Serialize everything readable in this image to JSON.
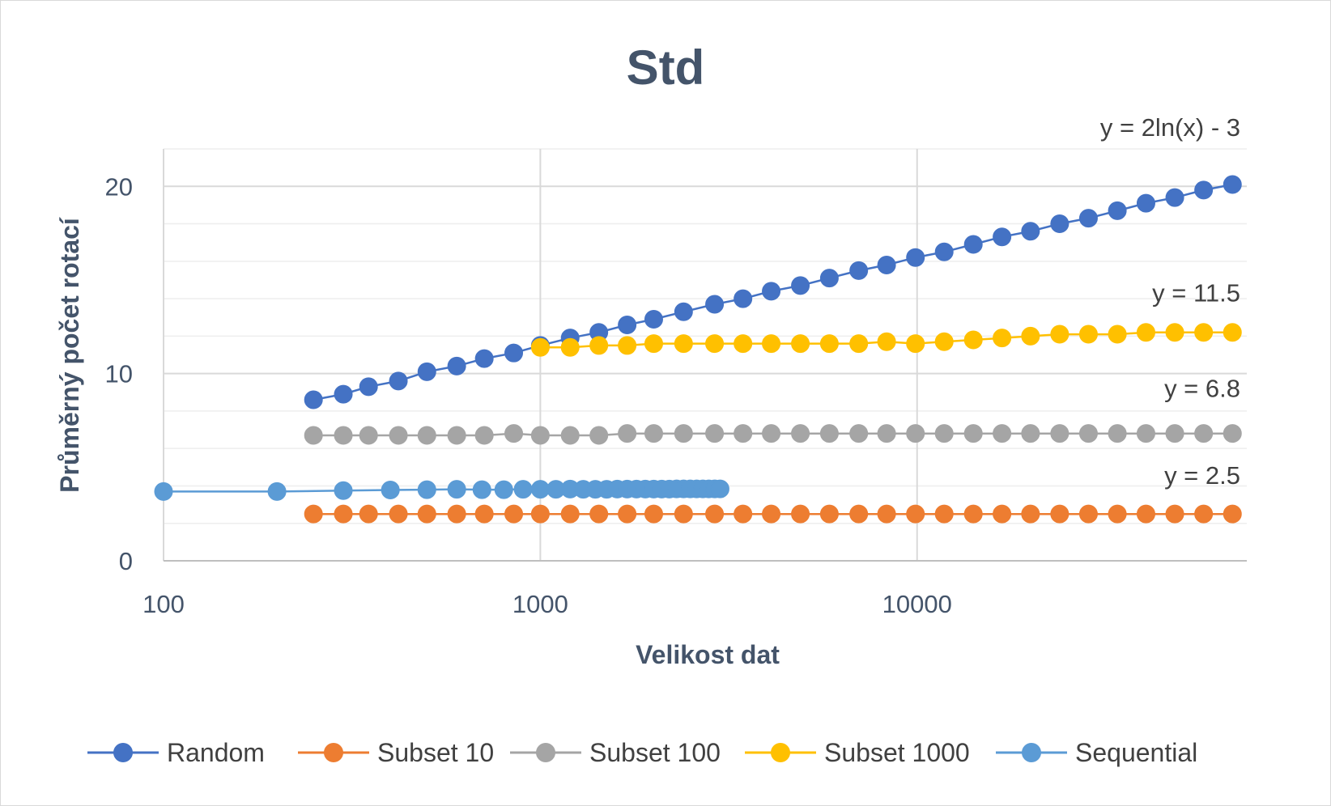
{
  "chart_data": {
    "type": "scatter",
    "title": "Std",
    "xlabel": "Velikost dat",
    "ylabel": "Průměrný počet rotací",
    "x_scale": "log",
    "xlim": [
      100,
      75000
    ],
    "ylim": [
      0,
      22
    ],
    "x_ticks": [
      "100",
      "1000",
      "10000"
    ],
    "y_ticks": [
      "0",
      "10",
      "20"
    ],
    "grid": true,
    "legend_position": "bottom",
    "series": [
      {
        "name": "Random",
        "color": "#4472c4",
        "x": [
          250,
          300,
          350,
          420,
          500,
          600,
          710,
          850,
          1000,
          1200,
          1430,
          1700,
          2000,
          2400,
          2900,
          3450,
          4100,
          4900,
          5850,
          7000,
          8300,
          9900,
          11800,
          14100,
          16800,
          20000,
          23900,
          28500,
          34000,
          40500,
          48300,
          57600,
          68700
        ],
        "y": [
          8.6,
          8.9,
          9.3,
          9.6,
          10.1,
          10.4,
          10.8,
          11.1,
          11.5,
          11.9,
          12.2,
          12.6,
          12.9,
          13.3,
          13.7,
          14.0,
          14.4,
          14.7,
          15.1,
          15.5,
          15.8,
          16.2,
          16.5,
          16.9,
          17.3,
          17.6,
          18.0,
          18.3,
          18.7,
          19.1,
          19.4,
          19.8,
          20.1
        ]
      },
      {
        "name": "Subset 10",
        "color": "#ed7d31",
        "x": [
          250,
          300,
          350,
          420,
          500,
          600,
          710,
          850,
          1000,
          1200,
          1430,
          1700,
          2000,
          2400,
          2900,
          3450,
          4100,
          4900,
          5850,
          7000,
          8300,
          9900,
          11800,
          14100,
          16800,
          20000,
          23900,
          28500,
          34000,
          40500,
          48300,
          57600,
          68700
        ],
        "y": [
          2.5,
          2.5,
          2.5,
          2.5,
          2.5,
          2.5,
          2.5,
          2.5,
          2.5,
          2.5,
          2.5,
          2.5,
          2.5,
          2.5,
          2.5,
          2.5,
          2.5,
          2.5,
          2.5,
          2.5,
          2.5,
          2.5,
          2.5,
          2.5,
          2.5,
          2.5,
          2.5,
          2.5,
          2.5,
          2.5,
          2.5,
          2.5,
          2.5
        ]
      },
      {
        "name": "Subset 100",
        "color": "#a5a5a5",
        "x": [
          250,
          300,
          350,
          420,
          500,
          600,
          710,
          850,
          1000,
          1200,
          1430,
          1700,
          2000,
          2400,
          2900,
          3450,
          4100,
          4900,
          5850,
          7000,
          8300,
          9900,
          11800,
          14100,
          16800,
          20000,
          23900,
          28500,
          34000,
          40500,
          48300,
          57600,
          68700
        ],
        "y": [
          6.7,
          6.7,
          6.7,
          6.7,
          6.7,
          6.7,
          6.7,
          6.8,
          6.7,
          6.7,
          6.7,
          6.8,
          6.8,
          6.8,
          6.8,
          6.8,
          6.8,
          6.8,
          6.8,
          6.8,
          6.8,
          6.8,
          6.8,
          6.8,
          6.8,
          6.8,
          6.8,
          6.8,
          6.8,
          6.8,
          6.8,
          6.8,
          6.8
        ]
      },
      {
        "name": "Subset 1000",
        "color": "#ffc000",
        "x": [
          1000,
          1200,
          1430,
          1700,
          2000,
          2400,
          2900,
          3450,
          4100,
          4900,
          5850,
          7000,
          8300,
          9900,
          11800,
          14100,
          16800,
          20000,
          23900,
          28500,
          34000,
          40500,
          48300,
          57600,
          68700
        ],
        "y": [
          11.4,
          11.4,
          11.5,
          11.5,
          11.6,
          11.6,
          11.6,
          11.6,
          11.6,
          11.6,
          11.6,
          11.6,
          11.7,
          11.6,
          11.7,
          11.8,
          11.9,
          12.0,
          12.1,
          12.1,
          12.1,
          12.2,
          12.2,
          12.2,
          12.2
        ]
      },
      {
        "name": "Sequential",
        "color": "#5b9bd5",
        "x": [
          100,
          200,
          300,
          400,
          500,
          600,
          700,
          800,
          900,
          1000,
          1100,
          1200,
          1300,
          1400,
          1500,
          1600,
          1700,
          1800,
          1900,
          2000,
          2100,
          2200,
          2300,
          2400,
          2500,
          2600,
          2700,
          2800,
          2900,
          3000
        ],
        "y": [
          3.7,
          3.7,
          3.75,
          3.78,
          3.8,
          3.82,
          3.8,
          3.8,
          3.82,
          3.82,
          3.82,
          3.83,
          3.82,
          3.82,
          3.82,
          3.83,
          3.83,
          3.83,
          3.83,
          3.83,
          3.83,
          3.83,
          3.84,
          3.84,
          3.84,
          3.84,
          3.84,
          3.84,
          3.84,
          3.84
        ]
      }
    ],
    "annotations": [
      {
        "text": "y = 2ln(x) - 3",
        "series": "Random"
      },
      {
        "text": "y = 11.5",
        "series": "Subset 1000"
      },
      {
        "text": "y = 6.8",
        "series": "Subset 100"
      },
      {
        "text": "y = 2.5",
        "series": "Subset 10"
      }
    ]
  }
}
